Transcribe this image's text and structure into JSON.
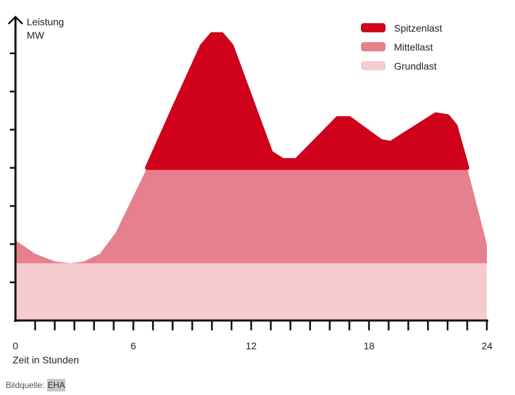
{
  "chart_data": {
    "type": "area",
    "title": "",
    "ylabel": "Leistung",
    "yunit": "MW",
    "xlabel": "Zeit in Stunden",
    "xlim": [
      0,
      24
    ],
    "ylim": [
      0,
      8
    ],
    "xticks": [
      "0",
      "6",
      "12",
      "18",
      "24"
    ],
    "legend_position": "top-right",
    "series": [
      {
        "name": "Spitzenlast",
        "color": "#d0021b",
        "x": [
          6.7,
          8,
          9.5,
          10,
          10.5,
          11,
          13,
          13.6,
          14.3,
          16.4,
          17,
          18.6,
          19.1,
          21.4,
          22,
          22.4,
          23
        ],
        "y": [
          4.0,
          5.5,
          7.2,
          7.5,
          7.5,
          7.2,
          4.4,
          4.2,
          4.2,
          5.3,
          5.3,
          4.7,
          4.65,
          5.4,
          5.35,
          5.1,
          4.0
        ]
      },
      {
        "name": "Mittellast",
        "color": "#e6808c",
        "x": [
          0,
          1,
          2,
          2.8,
          3.5,
          4.3,
          5.1,
          6.7,
          23,
          24
        ],
        "y": [
          2.1,
          1.75,
          1.55,
          1.5,
          1.55,
          1.75,
          2.3,
          4.0,
          4.0,
          2.0
        ]
      },
      {
        "name": "Grundlast",
        "color": "#f5cbd0",
        "x": [
          0,
          24
        ],
        "y": [
          1.5,
          1.5
        ]
      }
    ]
  },
  "caption": {
    "label": "Bildquelle:",
    "source": "EHA"
  }
}
